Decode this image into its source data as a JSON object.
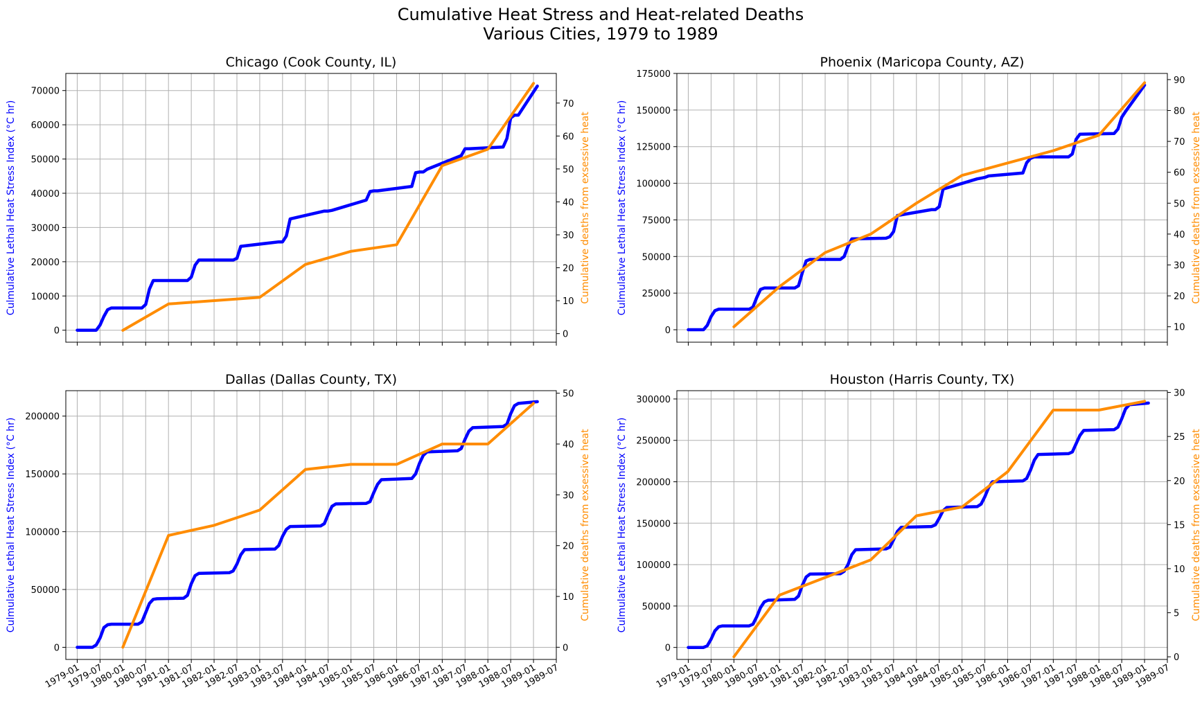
{
  "figure": {
    "title_line1": "Cumulative Heat Stress and Heat-related Deaths",
    "title_line2": "Various Cities, 1979 to 1989"
  },
  "colors": {
    "heat_line": "#0000ff",
    "deaths_line": "#ff8c00",
    "grid": "#b0b0b0",
    "axis": "#000000"
  },
  "x_ticks": [
    "1979-01",
    "1979-07",
    "1980-01",
    "1980-07",
    "1981-01",
    "1981-07",
    "1982-01",
    "1982-07",
    "1983-01",
    "1983-07",
    "1984-01",
    "1984-07",
    "1985-01",
    "1985-07",
    "1986-01",
    "1986-07",
    "1987-01",
    "1987-07",
    "1988-01",
    "1988-07",
    "1989-01",
    "1989-07"
  ],
  "chart_data": [
    {
      "type": "line",
      "title": "Chicago (Cook County, IL)",
      "ylabel_left": "Culmulative Lethal Heat Stress Index ($^\\circ$C hr)",
      "ylabel_left_display": "Culmulative Lethal Heat Stress Index (°C hr)",
      "ylabel_right": "Cumulative deaths from exsessive heat",
      "show_xticklabels": false,
      "xlim": [
        "1978-10",
        "1989-07"
      ],
      "ylim_left": [
        -3500,
        75000
      ],
      "yticks_left": [
        0,
        10000,
        20000,
        30000,
        40000,
        50000,
        60000,
        70000
      ],
      "ylim_right": [
        -2.6,
        79
      ],
      "yticks_right": [
        0,
        10,
        20,
        30,
        40,
        50,
        60,
        70
      ],
      "grid": true,
      "series": [
        {
          "axis": "left",
          "x": [
            "1979-01",
            "1979-06",
            "1979-07",
            "1979-08",
            "1979-09",
            "1979-10",
            "1980-06",
            "1980-07",
            "1980-08",
            "1980-09",
            "1981-06",
            "1981-07",
            "1981-08",
            "1981-09",
            "1982-06",
            "1982-07",
            "1982-08",
            "1983-06",
            "1983-07",
            "1983-08",
            "1983-09",
            "1984-06",
            "1984-07",
            "1984-08",
            "1985-05",
            "1985-06",
            "1985-07",
            "1985-08",
            "1986-05",
            "1986-06",
            "1986-07",
            "1986-08",
            "1986-09",
            "1987-06",
            "1987-07",
            "1987-08",
            "1988-05",
            "1988-06",
            "1988-07",
            "1988-08",
            "1988-09",
            "1989-02"
          ],
          "y": [
            0,
            0,
            1500,
            4000,
            6000,
            6500,
            6500,
            7500,
            12000,
            14500,
            14500,
            15500,
            19000,
            20500,
            20500,
            21000,
            24500,
            25800,
            25800,
            27500,
            32500,
            34800,
            34800,
            35000,
            38000,
            40500,
            40700,
            40700,
            42000,
            46000,
            46200,
            46200,
            47000,
            51000,
            53000,
            53000,
            53500,
            56000,
            62000,
            62800,
            62800,
            71300
          ]
        },
        {
          "axis": "right",
          "x": [
            "1980-01",
            "1981-01",
            "1983-01",
            "1984-01",
            "1985-01",
            "1986-01",
            "1987-01",
            "1988-01",
            "1989-01"
          ],
          "y": [
            1,
            9,
            11,
            21,
            25,
            27,
            51,
            56,
            76
          ]
        }
      ]
    },
    {
      "type": "line",
      "title": "Phoenix (Maricopa County, AZ)",
      "ylabel_left": "Culmulative Lethal Heat Stress Index ($^\\circ$C hr)",
      "ylabel_left_display": "Culmulative Lethal Heat Stress Index (°C hr)",
      "ylabel_right": "Cumulative deaths from exsessive heat",
      "show_xticklabels": false,
      "xlim": [
        "1978-10",
        "1989-07"
      ],
      "ylim_left": [
        -8500,
        175000
      ],
      "yticks_left": [
        0,
        25000,
        50000,
        75000,
        100000,
        125000,
        150000,
        175000
      ],
      "ylim_right": [
        5,
        92
      ],
      "yticks_right": [
        10,
        20,
        30,
        40,
        50,
        60,
        70,
        80,
        90
      ],
      "grid": true,
      "series": [
        {
          "axis": "left",
          "x": [
            "1979-01",
            "1979-05",
            "1979-06",
            "1979-07",
            "1979-08",
            "1979-09",
            "1980-05",
            "1980-06",
            "1980-07",
            "1980-08",
            "1980-09",
            "1981-05",
            "1981-06",
            "1981-07",
            "1981-08",
            "1981-09",
            "1982-05",
            "1982-06",
            "1982-07",
            "1982-08",
            "1983-05",
            "1983-06",
            "1983-07",
            "1983-08",
            "1984-05",
            "1984-06",
            "1984-07",
            "1984-08",
            "1985-05",
            "1985-06",
            "1985-07",
            "1985-08",
            "1986-05",
            "1986-06",
            "1986-07",
            "1986-08",
            "1987-05",
            "1987-06",
            "1987-07",
            "1987-08",
            "1988-05",
            "1988-06",
            "1988-07",
            "1988-08",
            "1989-01"
          ],
          "y": [
            0,
            0,
            3000,
            9000,
            13000,
            14000,
            14000,
            15500,
            22000,
            27500,
            28500,
            28500,
            30000,
            39000,
            47000,
            48000,
            48000,
            50000,
            57000,
            62000,
            62500,
            63500,
            67000,
            78000,
            82000,
            82000,
            84000,
            96000,
            103000,
            103500,
            104000,
            105000,
            107000,
            114000,
            117000,
            118000,
            118000,
            120000,
            130000,
            133500,
            134000,
            137000,
            145000,
            149000,
            167000
          ]
        },
        {
          "axis": "right",
          "x": [
            "1980-01",
            "1981-01",
            "1982-01",
            "1983-01",
            "1984-01",
            "1985-01",
            "1986-01",
            "1987-01",
            "1988-01",
            "1989-01"
          ],
          "y": [
            10,
            23,
            34,
            40,
            50,
            59,
            63,
            67,
            72,
            89
          ]
        }
      ]
    },
    {
      "type": "line",
      "title": "Dallas (Dallas County, TX)",
      "ylabel_left": "Culmulative Lethal Heat Stress Index ($^\\circ$C hr)",
      "ylabel_left_display": "Culmulative Lethal Heat Stress Index (°C hr)",
      "ylabel_right": "Cumulative deaths from exsessive heat",
      "show_xticklabels": true,
      "xlim": [
        "1978-10",
        "1989-07"
      ],
      "ylim_left": [
        -10500,
        222000
      ],
      "yticks_left": [
        0,
        50000,
        100000,
        150000,
        200000
      ],
      "ylim_right": [
        -2.4,
        50.5
      ],
      "yticks_right": [
        0,
        10,
        20,
        30,
        40,
        50
      ],
      "grid": true,
      "series": [
        {
          "axis": "left",
          "x": [
            "1979-01",
            "1979-05",
            "1979-06",
            "1979-07",
            "1979-08",
            "1979-09",
            "1979-10",
            "1980-05",
            "1980-06",
            "1980-07",
            "1980-08",
            "1980-09",
            "1980-10",
            "1981-05",
            "1981-06",
            "1981-07",
            "1981-08",
            "1981-09",
            "1982-05",
            "1982-06",
            "1982-07",
            "1982-08",
            "1982-09",
            "1983-05",
            "1983-06",
            "1983-07",
            "1983-08",
            "1983-09",
            "1984-05",
            "1984-06",
            "1984-07",
            "1984-08",
            "1984-09",
            "1985-05",
            "1985-06",
            "1985-07",
            "1985-08",
            "1985-09",
            "1986-05",
            "1986-06",
            "1986-07",
            "1986-08",
            "1986-09",
            "1987-05",
            "1987-06",
            "1987-07",
            "1987-08",
            "1987-09",
            "1988-05",
            "1988-06",
            "1988-07",
            "1988-08",
            "1988-09",
            "1989-02"
          ],
          "y": [
            0,
            0,
            2000,
            8000,
            17000,
            19500,
            20000,
            20000,
            22000,
            30000,
            38000,
            41500,
            42000,
            42500,
            45000,
            55000,
            62000,
            64000,
            64500,
            66000,
            72000,
            80000,
            84500,
            85000,
            88000,
            96000,
            102000,
            104500,
            105000,
            107000,
            115000,
            122000,
            124000,
            124500,
            126000,
            134000,
            141000,
            145000,
            146000,
            150000,
            159000,
            166000,
            169000,
            170000,
            172000,
            180000,
            187000,
            190000,
            191000,
            193000,
            202000,
            209000,
            211000,
            212500
          ]
        },
        {
          "axis": "right",
          "x": [
            "1980-01",
            "1981-01",
            "1982-01",
            "1983-01",
            "1984-01",
            "1985-01",
            "1986-01",
            "1987-01",
            "1988-01",
            "1989-01"
          ],
          "y": [
            0,
            22,
            24,
            27,
            35,
            36,
            36,
            40,
            40,
            48
          ]
        }
      ]
    },
    {
      "type": "line",
      "title": "Houston (Harris County, TX)",
      "ylabel_left": "Culmulative Lethal Heat Stress Index ($^\\circ$C hr)",
      "ylabel_left_display": "Culmulative Lethal Heat Stress Index (°C hr)",
      "ylabel_right": "Cumulative deaths from exsessive heat",
      "show_xticklabels": true,
      "xlim": [
        "1978-10",
        "1989-07"
      ],
      "ylim_left": [
        -14500,
        310000
      ],
      "yticks_left": [
        0,
        50000,
        100000,
        150000,
        200000,
        250000,
        300000
      ],
      "ylim_right": [
        -0.3,
        30.2
      ],
      "yticks_right": [
        0,
        5,
        10,
        15,
        20,
        25,
        30
      ],
      "grid": true,
      "series": [
        {
          "axis": "left",
          "x": [
            "1979-01",
            "1979-05",
            "1979-06",
            "1979-07",
            "1979-08",
            "1979-09",
            "1979-10",
            "1980-05",
            "1980-06",
            "1980-07",
            "1980-08",
            "1980-09",
            "1980-10",
            "1981-05",
            "1981-06",
            "1981-07",
            "1981-08",
            "1981-09",
            "1982-05",
            "1982-06",
            "1982-07",
            "1982-08",
            "1982-09",
            "1983-05",
            "1983-06",
            "1983-07",
            "1983-08",
            "1983-09",
            "1984-05",
            "1984-06",
            "1984-07",
            "1984-08",
            "1984-09",
            "1985-05",
            "1985-06",
            "1985-07",
            "1985-08",
            "1985-09",
            "1986-05",
            "1986-06",
            "1986-07",
            "1986-08",
            "1986-09",
            "1987-05",
            "1987-06",
            "1987-07",
            "1987-08",
            "1987-09",
            "1988-05",
            "1988-06",
            "1988-07",
            "1988-08",
            "1988-09",
            "1989-02"
          ],
          "y": [
            0,
            0,
            2000,
            10000,
            20000,
            25000,
            26000,
            26000,
            28000,
            37000,
            48000,
            55000,
            57000,
            58000,
            62000,
            75000,
            85000,
            88500,
            89000,
            92000,
            100000,
            112000,
            118000,
            119000,
            121000,
            130000,
            140000,
            145000,
            146000,
            148000,
            156000,
            165000,
            169000,
            170000,
            173000,
            182000,
            193000,
            200000,
            201000,
            204000,
            214000,
            226000,
            233000,
            234000,
            236000,
            246000,
            256000,
            262000,
            263000,
            266000,
            276000,
            288000,
            293000,
            295000
          ]
        },
        {
          "axis": "right",
          "x": [
            "1980-01",
            "1981-01",
            "1982-01",
            "1983-01",
            "1984-01",
            "1985-01",
            "1986-01",
            "1987-01",
            "1988-01",
            "1989-01"
          ],
          "y": [
            0,
            7,
            9,
            11,
            16,
            17,
            21,
            28,
            28,
            29
          ]
        }
      ]
    }
  ]
}
